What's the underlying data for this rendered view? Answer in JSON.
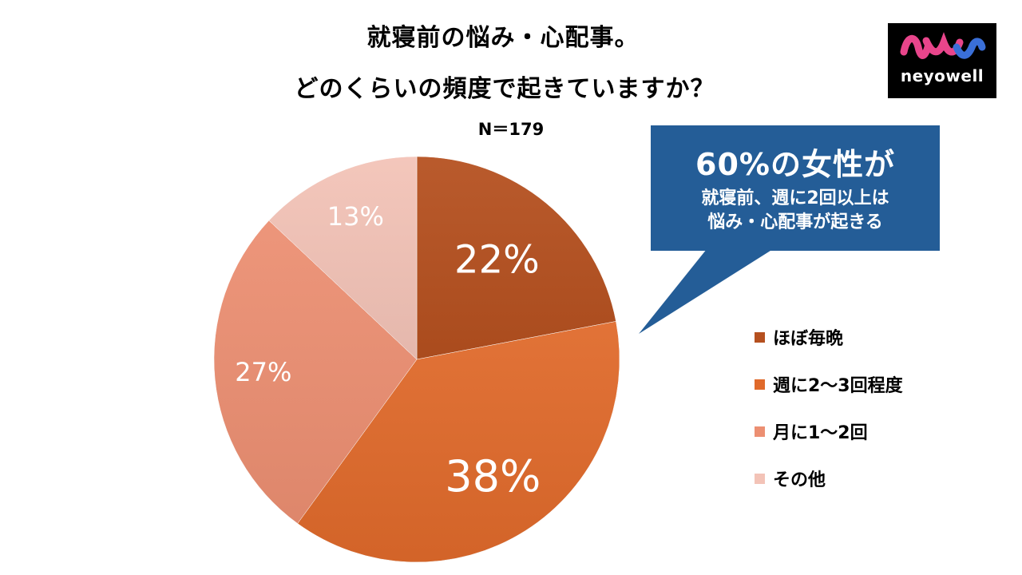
{
  "title_line1": "就寝前の悩み・心配事。",
  "title_line2": "どのくらいの頻度で起きていますか？",
  "sample_size": "N＝179",
  "chart_data": {
    "type": "pie",
    "title": "就寝前の悩み・心配事。どのくらいの頻度で起きていますか？",
    "categories": [
      "ほぼ毎晩",
      "週に2〜3回程度",
      "月に1〜2回",
      "その他"
    ],
    "values": [
      22,
      38,
      27,
      13
    ],
    "labels": [
      "22%",
      "38%",
      "27%",
      "13%"
    ],
    "colors": [
      "#b5501f",
      "#e06a2b",
      "#ec8f72",
      "#f3c3b7"
    ],
    "start_angle_deg": 0,
    "direction": "clockwise",
    "legend_position": "right"
  },
  "callout": {
    "headline": "60%の女性が",
    "line1": "就寝前、週に2回以上は",
    "line2": "悩み・心配事が起きる",
    "color": "#245d97"
  },
  "logo": {
    "text": "neyowell",
    "colors": [
      "#e8458b",
      "#3a6fd8"
    ]
  }
}
